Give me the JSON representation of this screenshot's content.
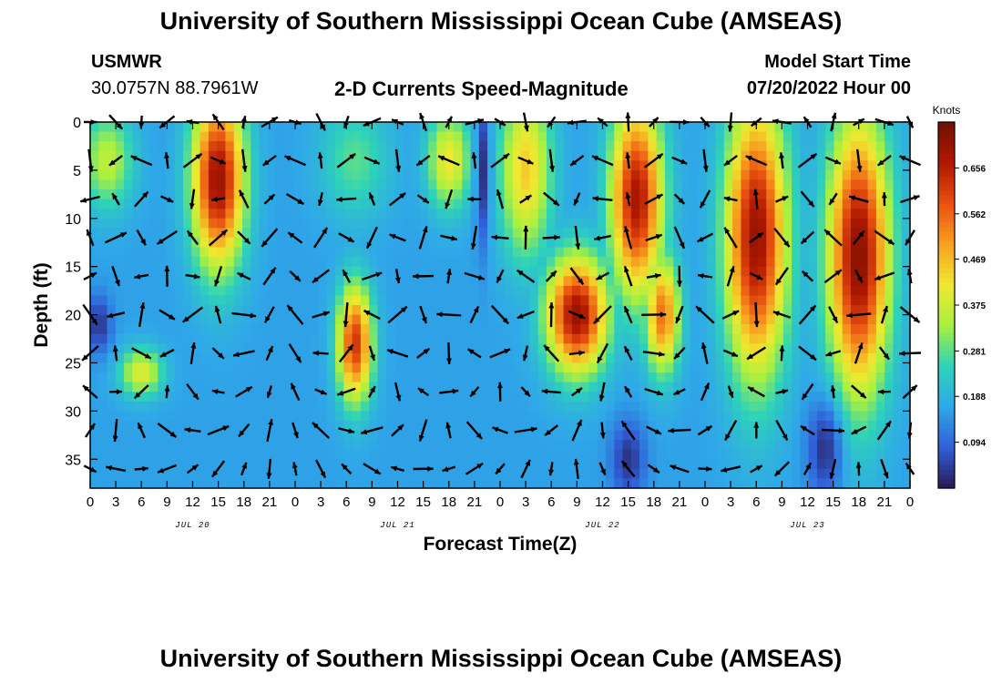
{
  "header": {
    "title": "University of Southern Mississippi Ocean Cube (AMSEAS)",
    "station": "USMWR",
    "coords": "30.0757N  88.7961W",
    "subtitle": "2-D Currents Speed-Magnitude",
    "model_start_label": "Model Start Time",
    "model_start_value": "07/20/2022 Hour 00"
  },
  "footer": {
    "title": "University of Southern Mississippi Ocean Cube (AMSEAS)"
  },
  "chart_data": {
    "type": "heatmap",
    "title": "2-D Currents Speed-Magnitude",
    "xlabel": "Forecast Time(Z)",
    "ylabel": "Depth (ft)",
    "x_range_hours": [
      0,
      96
    ],
    "ylim": [
      0,
      38
    ],
    "x_tick_step_hours": 3,
    "x_tick_labels": [
      "0",
      "3",
      "6",
      "9",
      "12",
      "15",
      "18",
      "21",
      "0",
      "3",
      "6",
      "9",
      "12",
      "15",
      "18",
      "21",
      "0",
      "3",
      "6",
      "9",
      "12",
      "15",
      "18",
      "21",
      "0",
      "3",
      "6",
      "9",
      "12",
      "15",
      "18",
      "21",
      "0"
    ],
    "day_labels": [
      "JUL 20",
      "JUL 21",
      "JUL 22",
      "JUL 23"
    ],
    "day_label_hours": [
      12,
      36,
      60,
      84
    ],
    "y_ticks": [
      0,
      5,
      10,
      15,
      20,
      25,
      30,
      35
    ],
    "y_tick_labels": [
      "0",
      "5",
      "10",
      "15",
      "20",
      "25",
      "30",
      "35"
    ],
    "colorbar": {
      "unit_label": "Knots",
      "range": [
        0.0,
        0.75
      ],
      "tick_values": [
        0.094,
        0.188,
        0.281,
        0.375,
        0.469,
        0.562,
        0.656
      ],
      "tick_labels": [
        "0.094",
        "0.188",
        "0.281",
        "0.375",
        "0.469",
        "0.562",
        "0.656"
      ],
      "colors": [
        "#2a1a55",
        "#3060d8",
        "#2fa8e8",
        "#2ed3b8",
        "#a8f040",
        "#f0e830",
        "#f8a020",
        "#e85010",
        "#b01800",
        "#701000"
      ]
    },
    "speed_features": [
      {
        "t": 15,
        "z": 6,
        "speed": 0.7,
        "t_half_width": 3.0,
        "z_half_width": 9
      },
      {
        "t": 2,
        "z": 4,
        "speed": 0.36,
        "t_half_width": 3.0,
        "z_half_width": 5
      },
      {
        "t": 6,
        "z": 26,
        "speed": 0.4,
        "t_half_width": 2.5,
        "z_half_width": 2.5
      },
      {
        "t": 31,
        "z": 4,
        "speed": 0.28,
        "t_half_width": 4.0,
        "z_half_width": 6
      },
      {
        "t": 31,
        "z": 23,
        "speed": 0.62,
        "t_half_width": 2.0,
        "z_half_width": 6
      },
      {
        "t": 42,
        "z": 4,
        "speed": 0.42,
        "t_half_width": 2.5,
        "z_half_width": 5
      },
      {
        "t": 51,
        "z": 5,
        "speed": 0.45,
        "t_half_width": 3.0,
        "z_half_width": 9
      },
      {
        "t": 57,
        "z": 20,
        "speed": 0.7,
        "t_half_width": 3.5,
        "z_half_width": 6
      },
      {
        "t": 64,
        "z": 8,
        "speed": 0.68,
        "t_half_width": 3.0,
        "z_half_width": 10
      },
      {
        "t": 67,
        "z": 20,
        "speed": 0.55,
        "t_half_width": 2.0,
        "z_half_width": 6
      },
      {
        "t": 78,
        "z": 12,
        "speed": 0.7,
        "t_half_width": 3.5,
        "z_half_width": 14
      },
      {
        "t": 90,
        "z": 14,
        "speed": 0.72,
        "t_half_width": 3.5,
        "z_half_width": 14
      }
    ],
    "base_speed": 0.16,
    "low_features": [
      {
        "t": 1,
        "z": 21,
        "speed": 0.03,
        "t_half_width": 1.5,
        "z_half_width": 3
      },
      {
        "t": 46,
        "z": 5,
        "speed": 0.03,
        "t_half_width": 0.8,
        "z_half_width": 8
      },
      {
        "t": 63,
        "z": 35,
        "speed": 0.03,
        "t_half_width": 2.0,
        "z_half_width": 4
      },
      {
        "t": 86,
        "z": 34,
        "speed": 0.03,
        "t_half_width": 2.0,
        "z_half_width": 5
      }
    ],
    "vector_times": [
      0,
      3,
      6,
      9,
      12,
      15,
      18,
      21,
      24,
      27,
      30,
      33,
      36,
      39,
      42,
      45,
      48,
      51,
      54,
      57,
      60,
      63,
      66,
      69,
      72,
      75,
      78,
      81,
      84,
      87,
      90,
      93,
      96
    ],
    "vector_depths": [
      0,
      4,
      8,
      12,
      16,
      20,
      24,
      28,
      32,
      36
    ],
    "vector_description": "current direction arrows"
  }
}
